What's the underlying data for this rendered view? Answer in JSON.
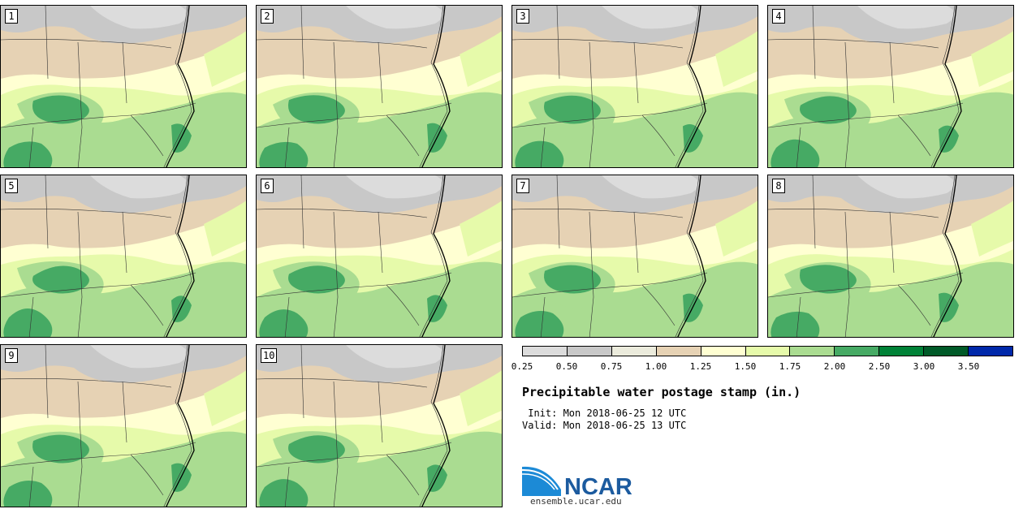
{
  "panels": [
    "1",
    "2",
    "3",
    "4",
    "5",
    "6",
    "7",
    "8",
    "9",
    "10"
  ],
  "legend": {
    "colors": [
      "#dcdcdc",
      "#c8c8c8",
      "#ebebdc",
      "#e6d2b4",
      "#ffffd2",
      "#e6faaa",
      "#aadc91",
      "#46aa64",
      "#008237",
      "#005a28",
      "#0028aa"
    ],
    "ticks": [
      "0.25",
      "0.50",
      "0.75",
      "1.00",
      "1.25",
      "1.50",
      "1.75",
      "2.00",
      "2.50",
      "3.00",
      "3.50"
    ]
  },
  "title": "Precipitable water postage stamp (in.)",
  "init_line": " Init: Mon 2018-06-25 12 UTC",
  "valid_line": "Valid: Mon 2018-06-25 13 UTC",
  "logo": {
    "text": "NCAR",
    "url": "ensemble.ucar.edu",
    "color": "#1c5b9f"
  }
}
